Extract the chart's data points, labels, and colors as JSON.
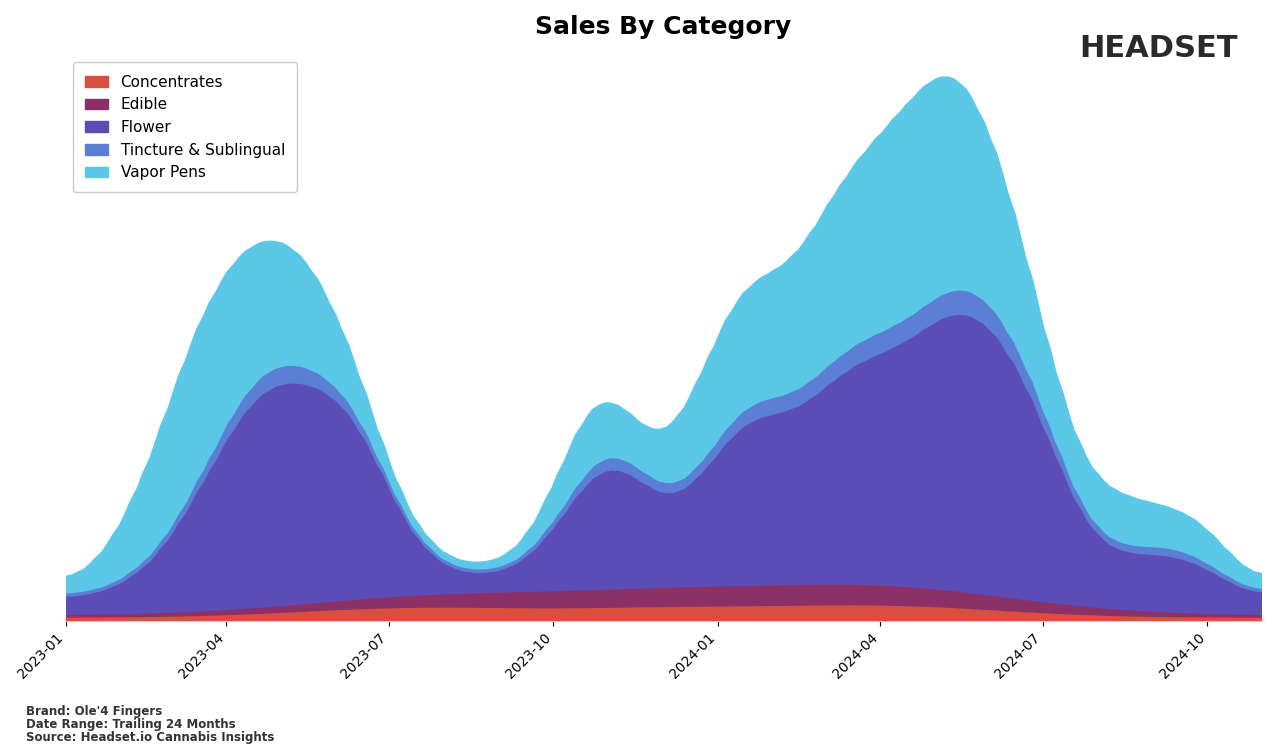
{
  "title": "Sales By Category",
  "categories": [
    "Concentrates",
    "Edible",
    "Flower",
    "Tincture & Sublingual",
    "Vapor Pens"
  ],
  "colors": [
    "#d94f3d",
    "#8b3066",
    "#5b4db5",
    "#5b7fd4",
    "#5bc8e8"
  ],
  "brand_text": "Ole'4 Fingers",
  "date_range_text": "Trailing 24 Months",
  "source_text": "Headset.io Cannabis Insights",
  "background_color": "#ffffff",
  "title_fontsize": 18,
  "legend_fontsize": 11
}
